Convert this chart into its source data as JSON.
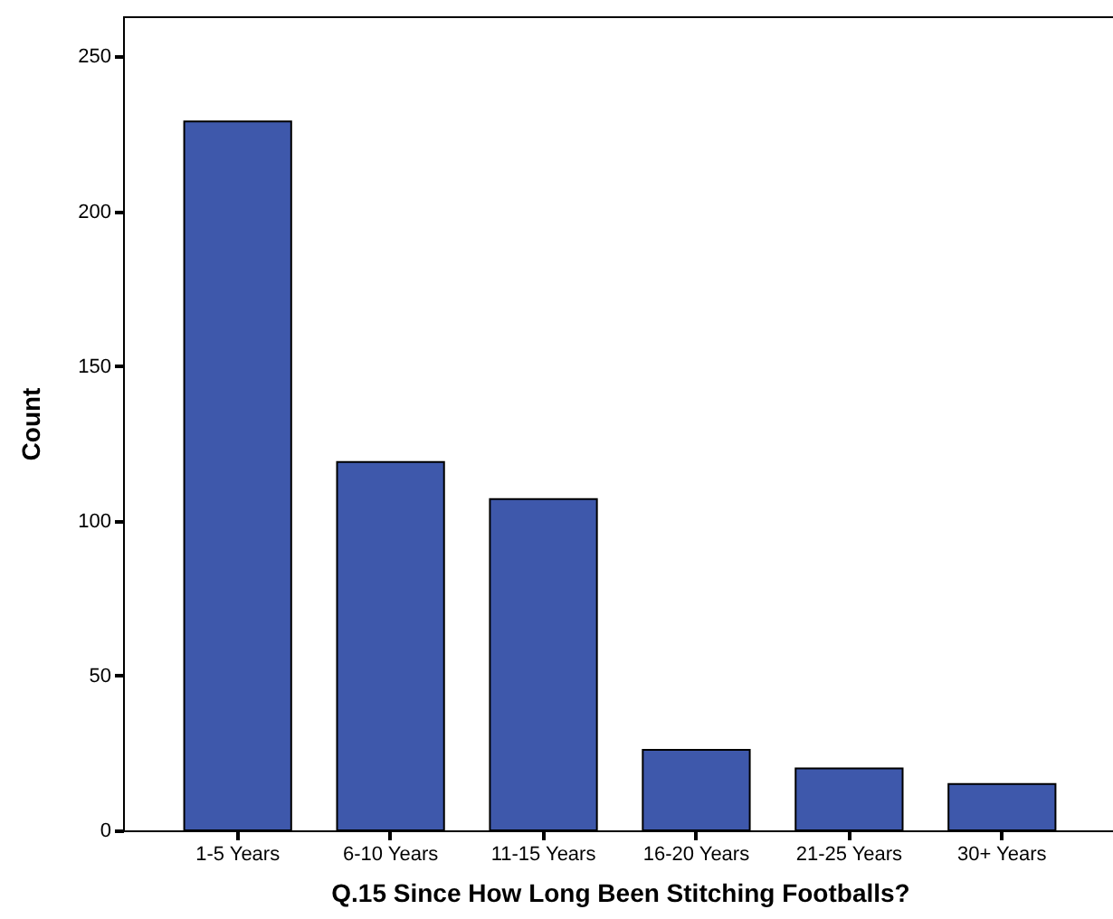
{
  "chart_data": {
    "type": "bar",
    "xlabel": "Q.15 Since How Long Been Stitching Footballs?",
    "ylabel": "Count",
    "categories": [
      "1-5 Years",
      "6-10 Years",
      "11-15 Years",
      "16-20 Years",
      "21-25 Years",
      "30+ Years"
    ],
    "values": [
      229,
      119,
      107,
      26,
      20,
      15
    ],
    "color": "#3e58ab",
    "ylim": [
      0,
      263
    ],
    "yticks": [
      0,
      50,
      100,
      150,
      200,
      250
    ],
    "grid": false
  }
}
